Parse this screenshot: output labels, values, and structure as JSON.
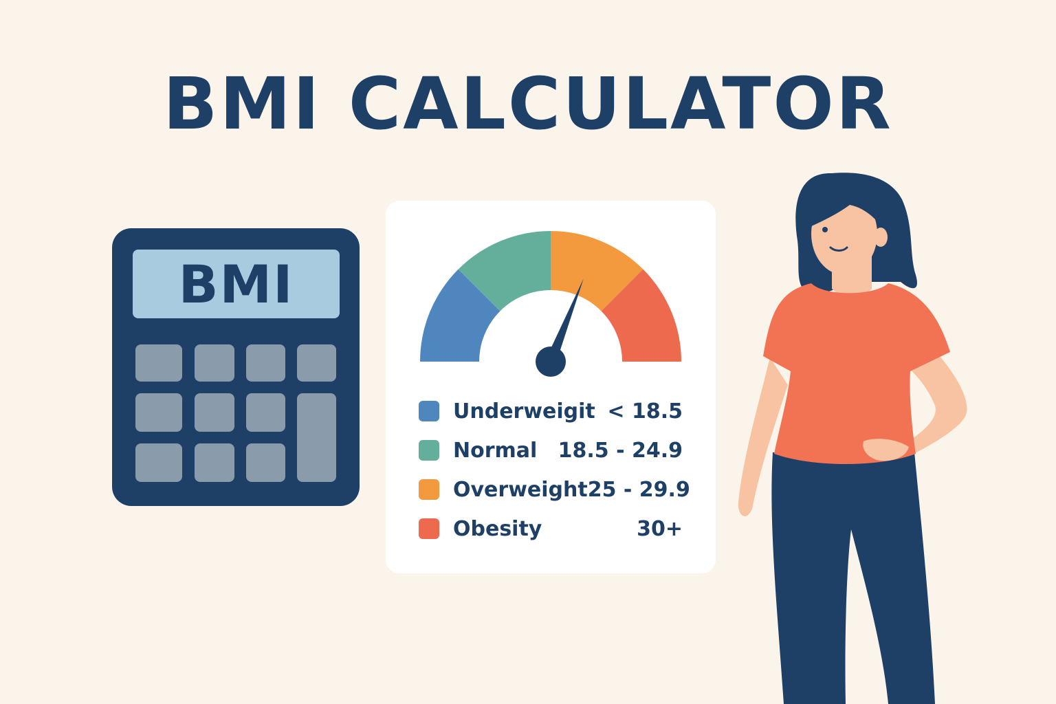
{
  "title": "BMI CALCULATOR",
  "calculator": {
    "display_text": "BMI",
    "body_color": "#1e3f66",
    "display_color": "#a8cbe0",
    "key_color": "#8a9bac"
  },
  "gauge": {
    "segments": [
      {
        "category": "Underweigit",
        "color": "#4f86bd"
      },
      {
        "category": "Normal",
        "color": "#63af9c"
      },
      {
        "category": "Overweight",
        "color": "#f39a3f"
      },
      {
        "category": "Obesity",
        "color": "#ed6a4e"
      }
    ],
    "needle_level": 0.62,
    "needle_color": "#1e3f66"
  },
  "legend": [
    {
      "label": "Underweigit",
      "range": "< 18.5",
      "color": "#4f86bd"
    },
    {
      "label": "Normal",
      "range": "18.5 - 24.9",
      "color": "#63af9c"
    },
    {
      "label": "Overweight",
      "range": "25 - 29.9",
      "color": "#f39a3f"
    },
    {
      "label": "Obesity",
      "range": "30+",
      "color": "#ed6a4e"
    }
  ],
  "colors": {
    "background": "#fbf4ea",
    "accent": "#1e3f66",
    "card": "#ffffff"
  },
  "illustration": {
    "subject": "woman-standing",
    "shirt_color": "#f27354",
    "pants_color": "#1e3f66",
    "hair_color": "#1e3f66",
    "skin_color": "#f8c3a2"
  }
}
